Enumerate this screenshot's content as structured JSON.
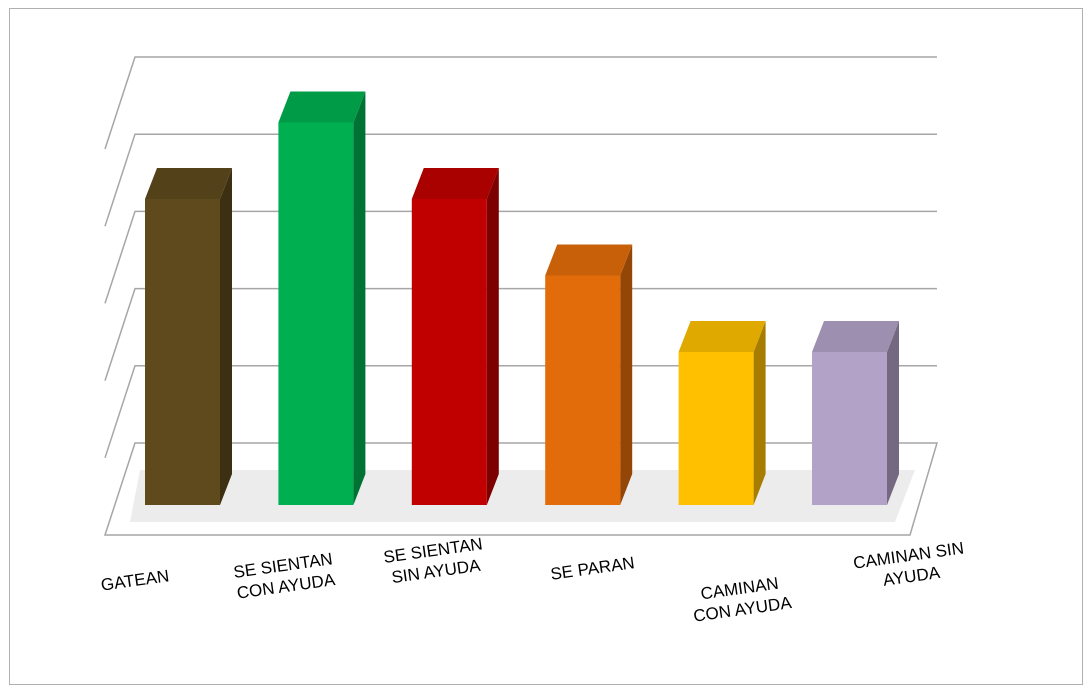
{
  "chart_data": {
    "type": "bar3d",
    "categories": [
      "GATEAN",
      "SE SIENTAN CON AYUDA",
      "SE SIENTAN SIN AYUDA",
      "SE PARAN",
      "CAMINAN CON AYUDA",
      "CAMINAN SIN AYUDA"
    ],
    "values": [
      4,
      5,
      4,
      3,
      2,
      2
    ],
    "colors": [
      "#5e4a1c",
      "#00b050",
      "#c00000",
      "#e36c0a",
      "#ffc000",
      "#b2a2c7"
    ],
    "ylim": [
      0,
      5
    ],
    "yticks": [
      0,
      1,
      2,
      3,
      4,
      5
    ],
    "grid": true
  }
}
